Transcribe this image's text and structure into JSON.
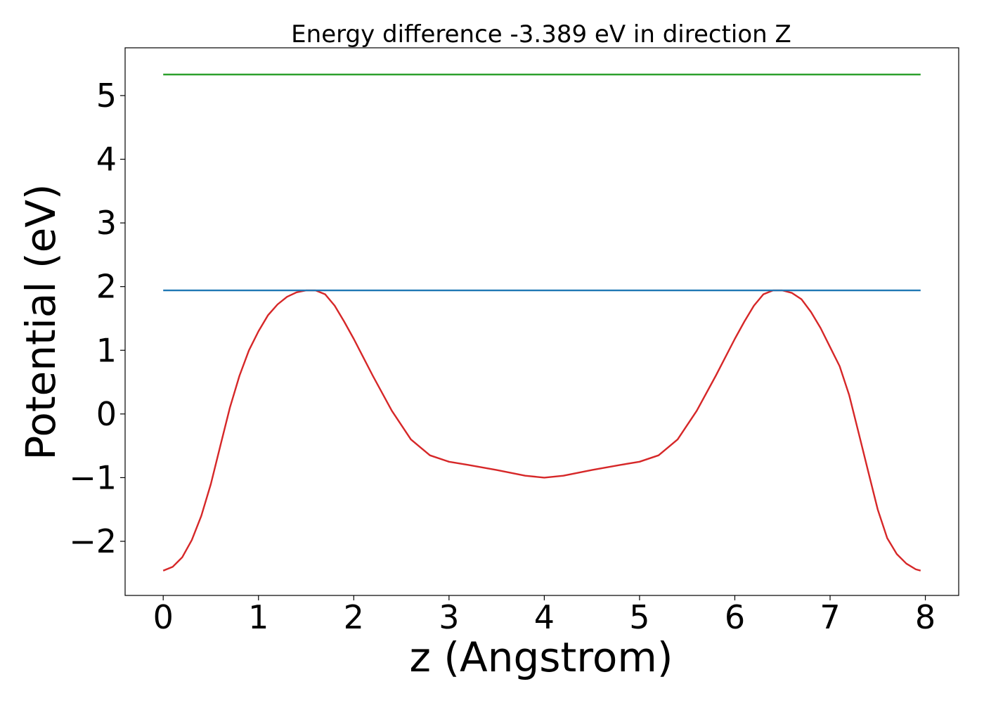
{
  "chart_data": {
    "type": "line",
    "title": "Energy difference -3.389 eV in direction Z",
    "xlabel": "z (Angstrom)",
    "ylabel": "Potential (eV)",
    "xlim": [
      -0.4,
      8.35
    ],
    "ylim": [
      -2.85,
      5.75
    ],
    "xticks": [
      0,
      1,
      2,
      3,
      4,
      5,
      6,
      7,
      8
    ],
    "xtick_labels": [
      "0",
      "1",
      "2",
      "3",
      "4",
      "5",
      "6",
      "7",
      "8"
    ],
    "yticks": [
      -2,
      -1,
      0,
      1,
      2,
      3,
      4,
      5
    ],
    "ytick_labels": [
      "−2",
      "−1",
      "0",
      "1",
      "2",
      "3",
      "4",
      "5"
    ],
    "grid": false,
    "series": [
      {
        "color": "#d62728",
        "x": [
          0,
          0.1,
          0.2,
          0.3,
          0.4,
          0.5,
          0.6,
          0.7,
          0.8,
          0.9,
          1.0,
          1.1,
          1.2,
          1.3,
          1.4,
          1.5,
          1.6,
          1.7,
          1.8,
          1.9,
          2.0,
          2.2,
          2.4,
          2.6,
          2.8,
          3.0,
          3.2,
          3.5,
          3.8,
          4.0,
          4.2,
          4.5,
          4.8,
          5.0,
          5.2,
          5.4,
          5.6,
          5.8,
          6.0,
          6.1,
          6.2,
          6.3,
          6.4,
          6.5,
          6.6,
          6.7,
          6.8,
          6.9,
          7.0,
          7.1,
          7.2,
          7.3,
          7.4,
          7.5,
          7.6,
          7.7,
          7.8,
          7.9,
          7.95
        ],
        "y": [
          -2.46,
          -2.4,
          -2.25,
          -1.98,
          -1.6,
          -1.1,
          -0.5,
          0.1,
          0.6,
          1.0,
          1.3,
          1.55,
          1.72,
          1.84,
          1.91,
          1.94,
          1.94,
          1.88,
          1.7,
          1.45,
          1.18,
          0.6,
          0.05,
          -0.4,
          -0.65,
          -0.75,
          -0.8,
          -0.88,
          -0.97,
          -1.0,
          -0.97,
          -0.88,
          -0.8,
          -0.75,
          -0.65,
          -0.4,
          0.05,
          0.6,
          1.18,
          1.45,
          1.7,
          1.88,
          1.94,
          1.94,
          1.9,
          1.8,
          1.6,
          1.35,
          1.05,
          0.75,
          0.3,
          -0.3,
          -0.9,
          -1.5,
          -1.95,
          -2.2,
          -2.35,
          -2.44,
          -2.46
        ]
      },
      {
        "color": "#1f77b4",
        "x": [
          0,
          7.95
        ],
        "y": [
          1.94,
          1.94
        ]
      },
      {
        "color": "#2ca02c",
        "x": [
          0,
          7.95
        ],
        "y": [
          5.33,
          5.33
        ]
      }
    ]
  }
}
